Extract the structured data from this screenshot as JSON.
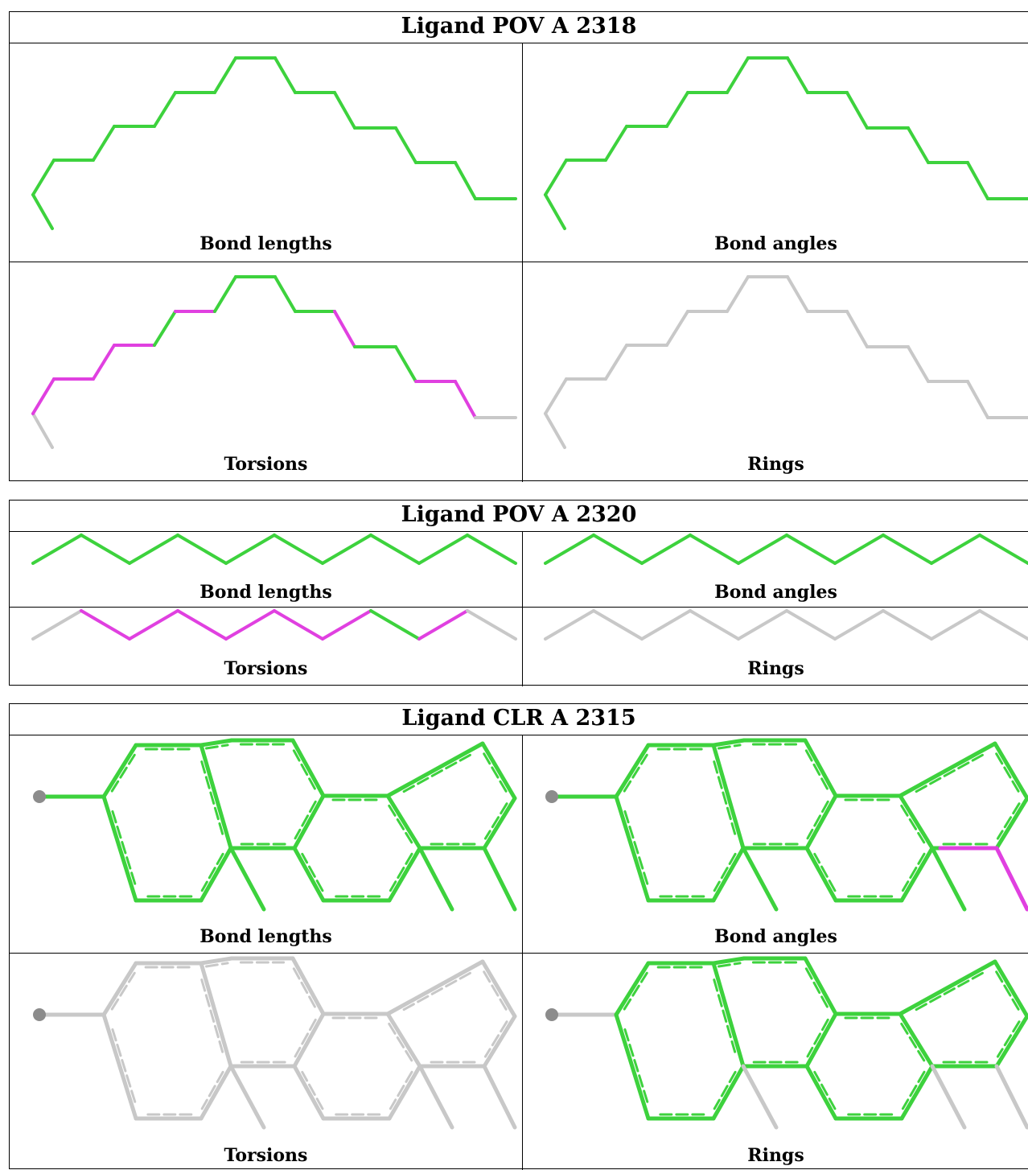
{
  "colors": {
    "ok": "#3dd23d",
    "outlier": "#e040e0",
    "none": "#c8c8c8",
    "atom": "#8c8c8c"
  },
  "panels": [
    {
      "title": "Ligand POV A 2318",
      "type": "chain-zigzag",
      "cells": [
        {
          "label": "Bond lengths",
          "scheme": "all-green"
        },
        {
          "label": "Bond angles",
          "scheme": "all-green"
        },
        {
          "label": "Torsions",
          "scheme": "torsion-chain"
        },
        {
          "label": "Rings",
          "scheme": "all-grey"
        }
      ]
    },
    {
      "title": "Ligand POV A 2320",
      "type": "chain-flat",
      "cells": [
        {
          "label": "Bond lengths",
          "scheme": "all-green"
        },
        {
          "label": "Bond angles",
          "scheme": "all-green"
        },
        {
          "label": "Torsions",
          "scheme": "torsion-flat"
        },
        {
          "label": "Rings",
          "scheme": "all-grey"
        }
      ]
    },
    {
      "title": "Ligand CLR A 2315",
      "type": "steroid",
      "cells": [
        {
          "label": "Bond lengths",
          "scheme": "all-green"
        },
        {
          "label": "Bond angles",
          "scheme": "angle-outlier"
        },
        {
          "label": "Torsions",
          "scheme": "all-grey"
        },
        {
          "label": "Rings",
          "scheme": "rings-green"
        }
      ]
    }
  ]
}
